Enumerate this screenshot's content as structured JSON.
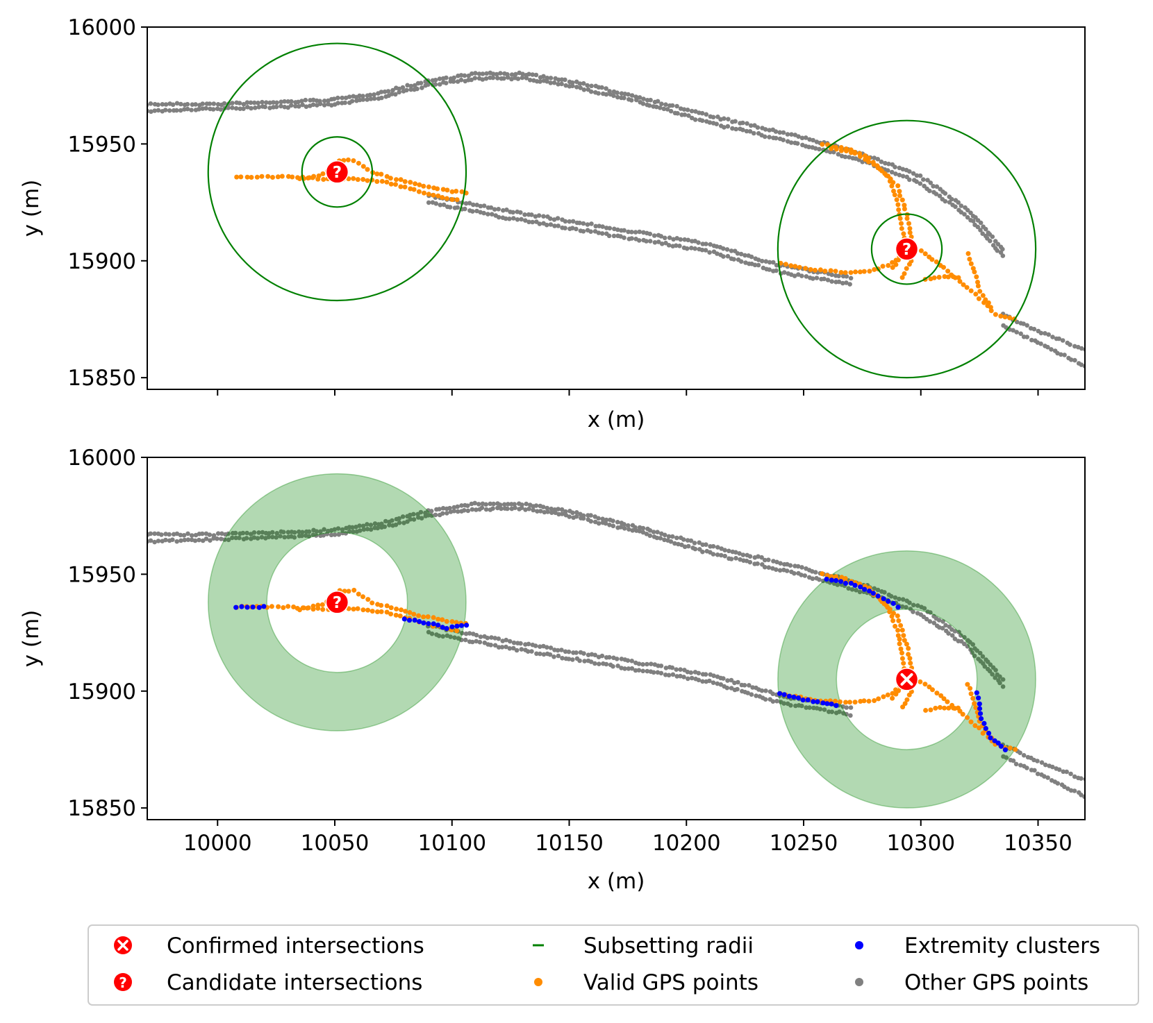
{
  "figure": {
    "legend": {
      "placement": "bottom-center",
      "entries": [
        {
          "label": "Confirmed intersections",
          "marker": "x-circle-icon",
          "color": "#ff0000"
        },
        {
          "label": "Candidate intersections",
          "marker": "question-circle-icon",
          "color": "#ff0000"
        },
        {
          "label": "Subsetting radii",
          "marker": "line",
          "color": "#008000"
        },
        {
          "label": "Valid GPS points",
          "marker": "dot",
          "color": "#ff8c00"
        },
        {
          "label": "Extremity clusters",
          "marker": "dot",
          "color": "#0000ff"
        },
        {
          "label": "Other GPS points",
          "marker": "dot",
          "color": "#808080"
        }
      ]
    }
  },
  "chart_data": [
    {
      "type": "scatter",
      "panel": "top",
      "xlabel": "x (m)",
      "ylabel": "y (m)",
      "xlim": [
        9970,
        10370
      ],
      "ylim": [
        15845,
        16000
      ],
      "xticks": [
        10000,
        10050,
        10100,
        10150,
        10200,
        10250,
        10300,
        10350
      ],
      "show_xtick_labels": false,
      "yticks": [
        15850,
        15900,
        15950,
        16000
      ],
      "ytick_labels": [
        "15850",
        "15900",
        "15950",
        "16000"
      ],
      "circles": [
        {
          "cx": 10051,
          "cy": 15938,
          "r": 15,
          "style": "outline",
          "color": "#008000"
        },
        {
          "cx": 10051,
          "cy": 15938,
          "r": 55,
          "style": "outline",
          "color": "#008000"
        },
        {
          "cx": 10294,
          "cy": 15905,
          "r": 15,
          "style": "outline",
          "color": "#008000"
        },
        {
          "cx": 10294,
          "cy": 15905,
          "r": 55,
          "style": "outline",
          "color": "#008000"
        }
      ],
      "intersections": [
        {
          "x": 10051,
          "y": 15938,
          "kind": "candidate"
        },
        {
          "x": 10294,
          "y": 15905,
          "kind": "candidate"
        }
      ]
    },
    {
      "type": "scatter",
      "panel": "bottom",
      "xlabel": "x (m)",
      "ylabel": "y (m)",
      "xlim": [
        9970,
        10370
      ],
      "ylim": [
        15845,
        16000
      ],
      "xticks": [
        10000,
        10050,
        10100,
        10150,
        10200,
        10250,
        10300,
        10350
      ],
      "xtick_labels": [
        "10000",
        "10050",
        "10100",
        "10150",
        "10200",
        "10250",
        "10300",
        "10350"
      ],
      "show_xtick_labels": true,
      "yticks": [
        15850,
        15900,
        15950,
        16000
      ],
      "ytick_labels": [
        "15850",
        "15900",
        "15950",
        "16000"
      ],
      "circles": [
        {
          "cx": 10051,
          "cy": 15938,
          "r_inner": 30,
          "r_outer": 55,
          "style": "annulus",
          "color": "#008000"
        },
        {
          "cx": 10294,
          "cy": 15905,
          "r_inner": 30,
          "r_outer": 55,
          "style": "annulus",
          "color": "#008000"
        }
      ],
      "intersections": [
        {
          "x": 10051,
          "y": 15938,
          "kind": "candidate"
        },
        {
          "x": 10294,
          "y": 15905,
          "kind": "confirmed"
        }
      ]
    }
  ],
  "gps_data": {
    "other_tracks": [
      [
        [
          9970,
          15967
        ],
        [
          10000,
          15967
        ],
        [
          10030,
          15968
        ],
        [
          10050,
          15969
        ],
        [
          10070,
          15972
        ],
        [
          10090,
          15977
        ],
        [
          10110,
          15980
        ],
        [
          10130,
          15980
        ],
        [
          10150,
          15977
        ],
        [
          10180,
          15970
        ],
        [
          10210,
          15962
        ],
        [
          10240,
          15955
        ],
        [
          10260,
          15950
        ],
        [
          10280,
          15944
        ],
        [
          10300,
          15936
        ],
        [
          10320,
          15922
        ],
        [
          10335,
          15905
        ]
      ],
      [
        [
          9970,
          15964
        ],
        [
          10000,
          15965
        ],
        [
          10030,
          15966
        ],
        [
          10050,
          15967
        ],
        [
          10070,
          15970
        ],
        [
          10090,
          15975
        ],
        [
          10110,
          15978
        ],
        [
          10130,
          15978
        ],
        [
          10150,
          15975
        ],
        [
          10180,
          15968
        ],
        [
          10210,
          15959
        ],
        [
          10240,
          15952
        ],
        [
          10260,
          15947
        ],
        [
          10280,
          15941
        ],
        [
          10300,
          15933
        ],
        [
          10320,
          15919
        ],
        [
          10335,
          15902
        ]
      ],
      [
        [
          10090,
          15928
        ],
        [
          10120,
          15922
        ],
        [
          10150,
          15917
        ],
        [
          10180,
          15912
        ],
        [
          10210,
          15907
        ],
        [
          10240,
          15898
        ],
        [
          10270,
          15893
        ]
      ],
      [
        [
          10090,
          15925
        ],
        [
          10120,
          15919
        ],
        [
          10150,
          15914
        ],
        [
          10180,
          15909
        ],
        [
          10210,
          15904
        ],
        [
          10240,
          15895
        ],
        [
          10270,
          15890
        ]
      ],
      [
        [
          10335,
          15877
        ],
        [
          10350,
          15870
        ],
        [
          10370,
          15862
        ]
      ],
      [
        [
          10335,
          15872
        ],
        [
          10350,
          15865
        ],
        [
          10370,
          15855
        ]
      ]
    ],
    "valid_tracks": [
      [
        [
          10008,
          15936
        ],
        [
          10030,
          15936
        ],
        [
          10045,
          15935
        ],
        [
          10060,
          15935
        ],
        [
          10070,
          15934
        ],
        [
          10082,
          15931
        ],
        [
          10092,
          15928
        ],
        [
          10102,
          15926
        ]
      ],
      [
        [
          10035,
          15935
        ],
        [
          10045,
          15937
        ],
        [
          10052,
          15943
        ],
        [
          10058,
          15943
        ],
        [
          10066,
          15938
        ],
        [
          10076,
          15935
        ],
        [
          10088,
          15932
        ],
        [
          10098,
          15930
        ],
        [
          10106,
          15929
        ]
      ],
      [
        [
          10262,
          15948
        ],
        [
          10272,
          15946
        ],
        [
          10282,
          15940
        ],
        [
          10290,
          15932
        ],
        [
          10294,
          15920
        ],
        [
          10296,
          15910
        ],
        [
          10296,
          15900
        ],
        [
          10292,
          15893
        ]
      ],
      [
        [
          10258,
          15950
        ],
        [
          10268,
          15948
        ],
        [
          10278,
          15944
        ],
        [
          10286,
          15936
        ],
        [
          10290,
          15926
        ],
        [
          10292,
          15914
        ],
        [
          10294,
          15905
        ],
        [
          10288,
          15897
        ]
      ],
      [
        [
          10240,
          15899
        ],
        [
          10255,
          15896
        ],
        [
          10270,
          15895
        ],
        [
          10280,
          15896
        ],
        [
          10288,
          15899
        ],
        [
          10294,
          15905
        ]
      ],
      [
        [
          10300,
          15904
        ],
        [
          10310,
          15897
        ],
        [
          10318,
          15890
        ],
        [
          10325,
          15884
        ],
        [
          10332,
          15877
        ],
        [
          10340,
          15875
        ]
      ],
      [
        [
          10320,
          15903
        ],
        [
          10323,
          15895
        ],
        [
          10325,
          15887
        ],
        [
          10330,
          15880
        ]
      ],
      [
        [
          10302,
          15892
        ],
        [
          10310,
          15893
        ],
        [
          10316,
          15893
        ]
      ]
    ],
    "extremity_tracks": [
      [
        [
          10008,
          15936
        ],
        [
          10020,
          15936
        ]
      ],
      [
        [
          10080,
          15931
        ],
        [
          10090,
          15929
        ],
        [
          10098,
          15927
        ],
        [
          10106,
          15928
        ]
      ],
      [
        [
          10260,
          15948
        ],
        [
          10270,
          15946
        ],
        [
          10280,
          15942
        ],
        [
          10290,
          15936
        ]
      ],
      [
        [
          10240,
          15899
        ],
        [
          10252,
          15896
        ],
        [
          10264,
          15894
        ]
      ],
      [
        [
          10324,
          15899
        ],
        [
          10326,
          15888
        ],
        [
          10330,
          15880
        ],
        [
          10336,
          15875
        ]
      ]
    ]
  }
}
